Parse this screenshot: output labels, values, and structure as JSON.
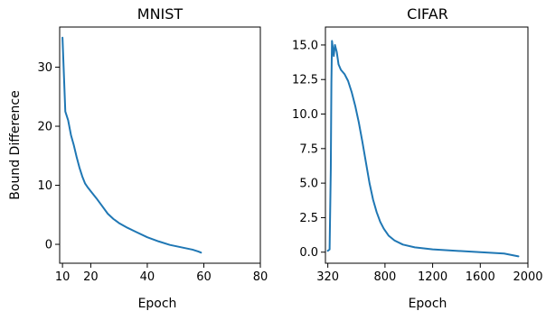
{
  "chart_data": [
    {
      "type": "line",
      "title": "MNIST",
      "xlabel": "Epoch",
      "ylabel": "Bound Difference",
      "xlim": [
        9,
        80
      ],
      "ylim": [
        -3.2,
        36.8
      ],
      "xticks": [
        10,
        20,
        40,
        60,
        80
      ],
      "yticks": [
        0,
        10,
        20,
        30
      ],
      "ytick_labels": [
        "0",
        "10",
        "20",
        "30"
      ],
      "grid": false,
      "color": "#1f77b4",
      "series": [
        {
          "x": [
            10,
            11,
            12,
            13,
            14,
            15,
            16,
            17,
            18,
            19,
            20,
            22,
            24,
            26,
            28,
            30,
            33,
            36,
            40,
            44,
            48,
            52,
            56,
            58,
            59
          ],
          "y": [
            35,
            22.5,
            21,
            18.5,
            16.8,
            14.8,
            13,
            11.5,
            10.3,
            9.6,
            9,
            7.8,
            6.5,
            5.2,
            4.3,
            3.6,
            2.8,
            2.1,
            1.2,
            0.5,
            -0.1,
            -0.5,
            -0.9,
            -1.2,
            -1.4
          ]
        }
      ]
    },
    {
      "type": "line",
      "title": "CIFAR",
      "xlabel": "Epoch",
      "xlim": [
        300,
        2000
      ],
      "ylim": [
        -0.8,
        16.3
      ],
      "xticks": [
        320,
        800,
        1200,
        1600,
        2000
      ],
      "yticks": [
        0,
        2.5,
        5,
        7.5,
        10,
        12.5,
        15
      ],
      "ytick_labels": [
        "0.0",
        "2.5",
        "5.0",
        "7.5",
        "10.0",
        "12.5",
        "15.0"
      ],
      "grid": false,
      "color": "#1f77b4",
      "series": [
        {
          "x": [
            320,
            335,
            345,
            350,
            355,
            362,
            370,
            380,
            395,
            410,
            430,
            460,
            490,
            520,
            550,
            580,
            610,
            640,
            670,
            700,
            730,
            760,
            790,
            830,
            880,
            950,
            1050,
            1200,
            1400,
            1600,
            1800,
            1920
          ],
          "y": [
            0.1,
            0.2,
            6.0,
            12.2,
            15.3,
            14.8,
            14.2,
            15.0,
            14.5,
            13.6,
            13.2,
            12.9,
            12.4,
            11.6,
            10.6,
            9.4,
            8.0,
            6.5,
            5.0,
            3.8,
            2.9,
            2.2,
            1.7,
            1.2,
            0.85,
            0.55,
            0.35,
            0.2,
            0.1,
            0.0,
            -0.1,
            -0.3
          ]
        }
      ]
    }
  ]
}
